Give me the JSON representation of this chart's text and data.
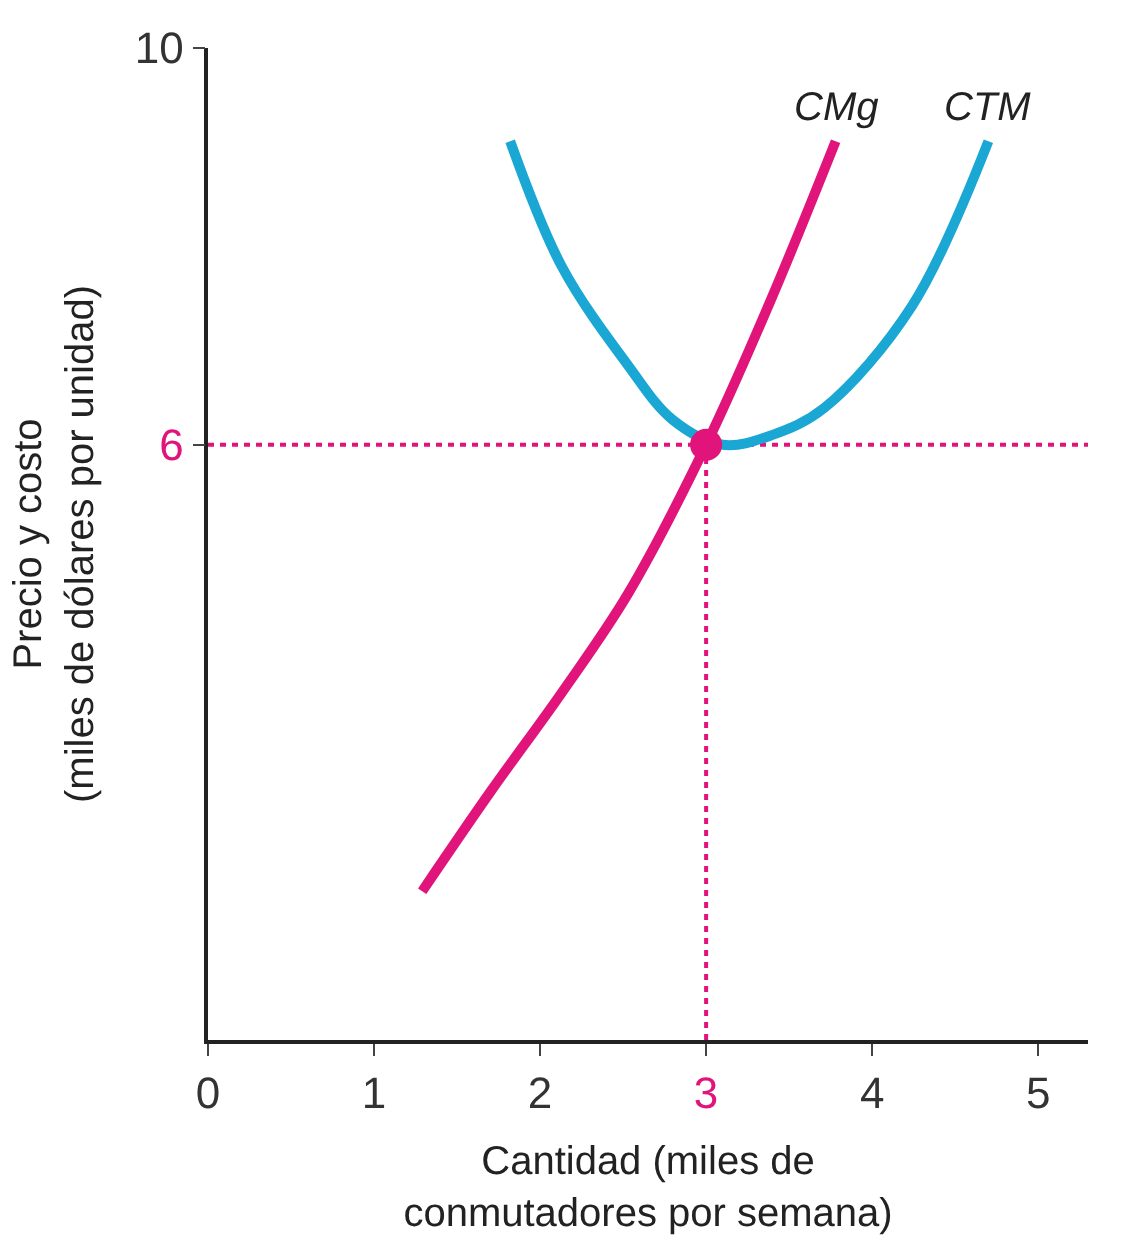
{
  "chart_data": {
    "type": "line",
    "xlabel": "Cantidad (miles de\nconmutadores por semana)",
    "ylabel": "Precio y costo\n(miles de dólares por unidad)",
    "xlim": [
      0,
      5.3
    ],
    "ylim": [
      0,
      10
    ],
    "xticks": [
      0,
      1,
      2,
      3,
      4,
      5
    ],
    "yticks": [
      6,
      10
    ],
    "series": [
      {
        "name": "CMg",
        "color": "#e0147a",
        "x": [
          1.29,
          1.7,
          2.13,
          2.53,
          3.0,
          3.4,
          3.78
        ],
        "values": [
          1.5,
          2.5,
          3.5,
          4.5,
          6.0,
          7.5,
          9.06
        ]
      },
      {
        "name": "CTM",
        "color": "#1aa7d4",
        "x": [
          1.82,
          2.13,
          2.53,
          2.8,
          3.1,
          3.4,
          3.71,
          4.24,
          4.7
        ],
        "values": [
          9.06,
          7.8,
          6.8,
          6.25,
          6.0,
          6.1,
          6.37,
          7.4,
          9.06
        ]
      },
      {
        "type": "scatter",
        "marker": "circle",
        "color": "#e0147a",
        "x": [
          3
        ],
        "values": [
          6
        ]
      }
    ],
    "ref_lines": [
      {
        "axis": "y",
        "value": 6,
        "color": "#e0147a",
        "line_style": "dotted"
      },
      {
        "axis": "x",
        "value": 3,
        "color": "#e0147a",
        "line_style": "dotted"
      }
    ]
  }
}
